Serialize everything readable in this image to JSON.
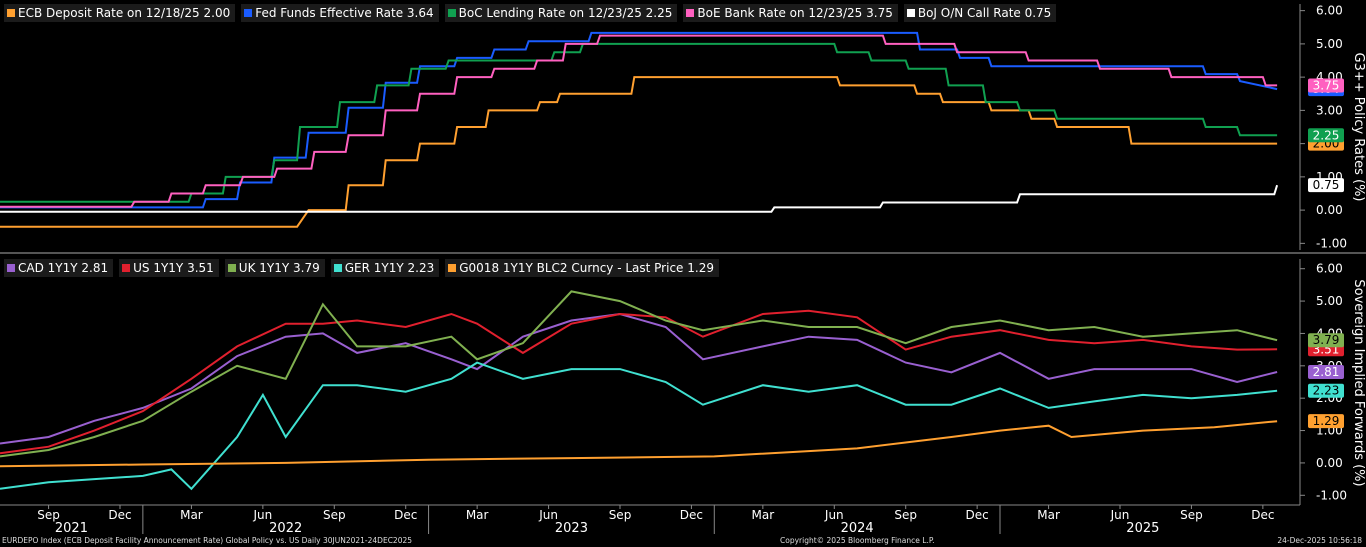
{
  "chart_data": [
    {
      "type": "line",
      "ylabel": "G3++ Policy Rates (%)",
      "ylim": [
        -1.2,
        6.2
      ],
      "yticks": [
        6,
        5,
        4,
        3,
        2,
        1,
        0,
        -1
      ],
      "ytick_labels": [
        "6.00",
        "5.00",
        "4.00",
        "3.00",
        "2.00",
        "1.00",
        "0.00",
        "-1.00"
      ],
      "series": [
        {
          "name": "ECB Deposit Rate on 12/18/25 2.00",
          "color": "#ffa030",
          "last_label": "2.00",
          "x": [
            2021.5,
            2022.54,
            2022.58,
            2022.71,
            2022.72,
            2022.84,
            2022.85,
            2022.96,
            2022.97,
            2023.09,
            2023.1,
            2023.2,
            2023.21,
            2023.38,
            2023.39,
            2023.45,
            2023.46,
            2023.71,
            2023.72,
            2024.43,
            2024.44,
            2024.7,
            2024.71,
            2024.79,
            2024.8,
            2024.96,
            2024.97,
            2025.1,
            2025.11,
            2025.19,
            2025.2,
            2025.45,
            2025.46,
            2025.97
          ],
          "y": [
            -0.5,
            -0.5,
            0.0,
            0.0,
            0.75,
            0.75,
            1.5,
            1.5,
            2.0,
            2.0,
            2.5,
            2.5,
            3.0,
            3.0,
            3.25,
            3.25,
            3.5,
            3.5,
            4.0,
            4.0,
            3.75,
            3.75,
            3.5,
            3.5,
            3.25,
            3.25,
            3.0,
            3.0,
            2.75,
            2.75,
            2.5,
            2.5,
            2.0,
            2.0
          ]
        },
        {
          "name": "Fed Funds Effective Rate 3.64",
          "color": "#1a5cff",
          "last_label": "3.64",
          "x": [
            2021.5,
            2022.21,
            2022.22,
            2022.33,
            2022.34,
            2022.45,
            2022.46,
            2022.57,
            2022.58,
            2022.71,
            2022.72,
            2022.84,
            2022.85,
            2022.96,
            2022.97,
            2023.09,
            2023.1,
            2023.22,
            2023.23,
            2023.34,
            2023.35,
            2023.56,
            2023.57,
            2024.71,
            2024.72,
            2024.85,
            2024.86,
            2024.96,
            2024.97,
            2025.71,
            2025.72,
            2025.83,
            2025.84,
            2025.97
          ],
          "y": [
            0.08,
            0.08,
            0.33,
            0.33,
            0.83,
            0.83,
            1.58,
            1.58,
            2.33,
            2.33,
            3.08,
            3.08,
            3.83,
            3.83,
            4.33,
            4.33,
            4.58,
            4.58,
            4.83,
            4.83,
            5.08,
            5.08,
            5.33,
            5.33,
            4.83,
            4.83,
            4.58,
            4.58,
            4.33,
            4.33,
            4.09,
            4.09,
            3.88,
            3.64
          ]
        },
        {
          "name": "BoC Lending Rate on 12/23/25 2.25",
          "color": "#10a050",
          "last_label": "2.25",
          "x": [
            2021.5,
            2022.16,
            2022.17,
            2022.28,
            2022.29,
            2022.45,
            2022.46,
            2022.54,
            2022.55,
            2022.68,
            2022.69,
            2022.81,
            2022.82,
            2022.93,
            2022.94,
            2023.06,
            2023.07,
            2023.43,
            2023.44,
            2023.53,
            2023.54,
            2024.42,
            2024.43,
            2024.54,
            2024.55,
            2024.67,
            2024.68,
            2024.81,
            2024.82,
            2024.94,
            2024.95,
            2025.06,
            2025.07,
            2025.19,
            2025.2,
            2025.71,
            2025.72,
            2025.83,
            2025.84,
            2025.97
          ],
          "y": [
            0.25,
            0.25,
            0.5,
            0.5,
            1.0,
            1.0,
            1.5,
            1.5,
            2.5,
            2.5,
            3.25,
            3.25,
            3.75,
            3.75,
            4.25,
            4.25,
            4.5,
            4.5,
            4.75,
            4.75,
            5.0,
            5.0,
            4.75,
            4.75,
            4.5,
            4.5,
            4.25,
            4.25,
            3.75,
            3.75,
            3.25,
            3.25,
            3.0,
            3.0,
            2.75,
            2.75,
            2.5,
            2.5,
            2.25,
            2.25
          ]
        },
        {
          "name": "BoE Bank Rate on 12/23/25 3.75",
          "color": "#ff60c0",
          "last_label": "3.75",
          "x": [
            2021.5,
            2021.96,
            2021.97,
            2022.09,
            2022.1,
            2022.21,
            2022.22,
            2022.34,
            2022.35,
            2022.46,
            2022.47,
            2022.59,
            2022.6,
            2022.71,
            2022.72,
            2022.84,
            2022.85,
            2022.96,
            2022.97,
            2023.09,
            2023.1,
            2023.22,
            2023.23,
            2023.37,
            2023.38,
            2023.47,
            2023.48,
            2023.59,
            2023.6,
            2024.59,
            2024.6,
            2024.84,
            2024.85,
            2025.09,
            2025.1,
            2025.34,
            2025.35,
            2025.59,
            2025.6,
            2025.92,
            2025.93,
            2025.97
          ],
          "y": [
            0.1,
            0.1,
            0.25,
            0.25,
            0.5,
            0.5,
            0.75,
            0.75,
            1.0,
            1.0,
            1.25,
            1.25,
            1.75,
            1.75,
            2.25,
            2.25,
            3.0,
            3.0,
            3.5,
            3.5,
            4.0,
            4.0,
            4.25,
            4.25,
            4.5,
            4.5,
            5.0,
            5.0,
            5.25,
            5.25,
            5.0,
            5.0,
            4.75,
            4.75,
            4.5,
            4.5,
            4.25,
            4.25,
            4.0,
            4.0,
            3.75,
            3.75
          ]
        },
        {
          "name": "BoJ O/N Call Rate 0.75",
          "color": "#ffffff",
          "last_label": "0.75",
          "x": [
            2021.5,
            2024.2,
            2024.21,
            2024.58,
            2024.59,
            2025.06,
            2025.07,
            2025.96,
            2025.97
          ],
          "y": [
            -0.05,
            -0.05,
            0.08,
            0.08,
            0.23,
            0.23,
            0.48,
            0.48,
            0.75
          ]
        }
      ]
    },
    {
      "type": "line",
      "ylabel": "Sovereign Implied Forwards (%)",
      "ylim": [
        -1.3,
        6.3
      ],
      "yticks": [
        6,
        5,
        4,
        3,
        2,
        1,
        0,
        -1
      ],
      "ytick_labels": [
        "6.00",
        "5.00",
        "4.00",
        "3.00",
        "2.00",
        "1.00",
        "0.00",
        "-1.00"
      ],
      "series": [
        {
          "name": "CAD 1Y1Y 2.81",
          "color": "#9960d0",
          "last_label": "2.81",
          "x": [
            2021.5,
            2021.67,
            2021.83,
            2022.0,
            2022.17,
            2022.33,
            2022.5,
            2022.63,
            2022.75,
            2022.92,
            2023.08,
            2023.17,
            2023.33,
            2023.5,
            2023.67,
            2023.83,
            2023.96,
            2024.17,
            2024.33,
            2024.5,
            2024.67,
            2024.83,
            2025.0,
            2025.17,
            2025.33,
            2025.5,
            2025.67,
            2025.83,
            2025.97
          ],
          "y": [
            0.6,
            0.8,
            1.3,
            1.7,
            2.3,
            3.3,
            3.9,
            4.0,
            3.4,
            3.7,
            3.2,
            2.9,
            3.9,
            4.4,
            4.6,
            4.2,
            3.2,
            3.6,
            3.9,
            3.8,
            3.1,
            2.8,
            3.4,
            2.6,
            2.9,
            2.9,
            2.9,
            2.5,
            2.81
          ]
        },
        {
          "name": "US 1Y1Y 3.51",
          "color": "#e0202e",
          "last_label": "3.51",
          "x": [
            2021.5,
            2021.67,
            2021.83,
            2022.0,
            2022.17,
            2022.33,
            2022.5,
            2022.63,
            2022.75,
            2022.92,
            2023.08,
            2023.17,
            2023.33,
            2023.5,
            2023.67,
            2023.83,
            2023.96,
            2024.17,
            2024.33,
            2024.5,
            2024.67,
            2024.83,
            2025.0,
            2025.17,
            2025.33,
            2025.5,
            2025.67,
            2025.83,
            2025.97
          ],
          "y": [
            0.3,
            0.5,
            1.0,
            1.6,
            2.6,
            3.6,
            4.3,
            4.3,
            4.4,
            4.2,
            4.6,
            4.3,
            3.4,
            4.3,
            4.6,
            4.5,
            3.9,
            4.6,
            4.7,
            4.5,
            3.5,
            3.9,
            4.1,
            3.8,
            3.7,
            3.8,
            3.6,
            3.5,
            3.51
          ]
        },
        {
          "name": "UK 1Y1Y 3.79",
          "color": "#80b050",
          "last_label": "3.79",
          "x": [
            2021.5,
            2021.67,
            2021.83,
            2022.0,
            2022.17,
            2022.33,
            2022.5,
            2022.63,
            2022.75,
            2022.92,
            2023.08,
            2023.17,
            2023.33,
            2023.5,
            2023.67,
            2023.83,
            2023.96,
            2024.17,
            2024.33,
            2024.5,
            2024.67,
            2024.83,
            2025.0,
            2025.17,
            2025.33,
            2025.5,
            2025.67,
            2025.83,
            2025.97
          ],
          "y": [
            0.2,
            0.4,
            0.8,
            1.3,
            2.2,
            3.0,
            2.6,
            4.9,
            3.6,
            3.6,
            3.9,
            3.2,
            3.7,
            5.3,
            5.0,
            4.4,
            4.1,
            4.4,
            4.2,
            4.2,
            3.7,
            4.2,
            4.4,
            4.1,
            4.2,
            3.9,
            4.0,
            4.1,
            3.79
          ]
        },
        {
          "name": "GER 1Y1Y 2.23",
          "color": "#40e0d0",
          "last_label": "2.23",
          "x": [
            2021.5,
            2021.67,
            2021.83,
            2022.0,
            2022.1,
            2022.17,
            2022.33,
            2022.42,
            2022.5,
            2022.63,
            2022.75,
            2022.92,
            2023.08,
            2023.17,
            2023.33,
            2023.5,
            2023.67,
            2023.83,
            2023.96,
            2024.17,
            2024.33,
            2024.5,
            2024.67,
            2024.83,
            2025.0,
            2025.17,
            2025.33,
            2025.5,
            2025.67,
            2025.83,
            2025.97
          ],
          "y": [
            -0.8,
            -0.6,
            -0.5,
            -0.4,
            -0.2,
            -0.8,
            0.8,
            2.1,
            0.8,
            2.4,
            2.4,
            2.2,
            2.6,
            3.1,
            2.6,
            2.9,
            2.9,
            2.5,
            1.8,
            2.4,
            2.2,
            2.4,
            1.8,
            1.8,
            2.3,
            1.7,
            1.9,
            2.1,
            2.0,
            2.1,
            2.23
          ]
        },
        {
          "name": "G0018 1Y1Y BLC2 Curncy - Last Price 1.29",
          "color": "#ffa030",
          "last_label": "1.29",
          "x": [
            2021.5,
            2022.0,
            2022.5,
            2023.0,
            2023.5,
            2024.0,
            2024.5,
            2024.83,
            2025.0,
            2025.17,
            2025.25,
            2025.5,
            2025.75,
            2025.97
          ],
          "y": [
            -0.1,
            -0.05,
            0.0,
            0.1,
            0.15,
            0.2,
            0.45,
            0.8,
            1.0,
            1.15,
            0.8,
            1.0,
            1.1,
            1.29
          ]
        }
      ]
    }
  ],
  "x_axis": {
    "months": [
      {
        "label": "Sep",
        "x": 2021.67
      },
      {
        "label": "Dec",
        "x": 2021.92
      },
      {
        "label": "Mar",
        "x": 2022.17
      },
      {
        "label": "Jun",
        "x": 2022.42
      },
      {
        "label": "Sep",
        "x": 2022.67
      },
      {
        "label": "Dec",
        "x": 2022.92
      },
      {
        "label": "Mar",
        "x": 2023.17
      },
      {
        "label": "Jun",
        "x": 2023.42
      },
      {
        "label": "Sep",
        "x": 2023.67
      },
      {
        "label": "Dec",
        "x": 2023.92
      },
      {
        "label": "Mar",
        "x": 2024.17
      },
      {
        "label": "Jun",
        "x": 2024.42
      },
      {
        "label": "Sep",
        "x": 2024.67
      },
      {
        "label": "Dec",
        "x": 2024.92
      },
      {
        "label": "Mar",
        "x": 2025.17
      },
      {
        "label": "Jun",
        "x": 2025.42
      },
      {
        "label": "Sep",
        "x": 2025.67
      },
      {
        "label": "Dec",
        "x": 2025.92
      }
    ],
    "years": [
      {
        "label": "2021",
        "x": 2021.75
      },
      {
        "label": "2022",
        "x": 2022.5
      },
      {
        "label": "2023",
        "x": 2023.5
      },
      {
        "label": "2024",
        "x": 2024.5
      },
      {
        "label": "2025",
        "x": 2025.5
      }
    ],
    "year_dividers": [
      2022.0,
      2023.0,
      2024.0,
      2025.0
    ],
    "xlim": [
      2021.5,
      2026.05
    ]
  },
  "footer": {
    "left": "EURDEPO Index (ECB Deposit Facility Announcement Rate) Global Policy vs. US Daily 30JUN2021-24DEC2025",
    "center": "Copyright© 2025 Bloomberg Finance L.P.",
    "right": "24-Dec-2025 10:56:18"
  }
}
